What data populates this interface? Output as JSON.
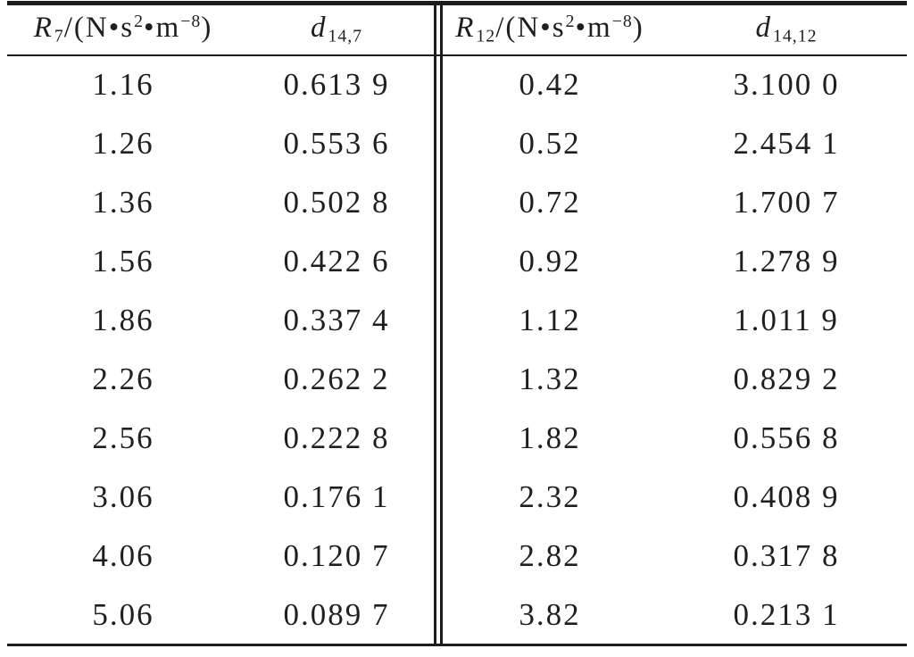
{
  "page": {
    "background": "#ffffff",
    "text_color": "#1f1f1f",
    "rule_color": "#1c1c1c"
  },
  "table": {
    "columns": [
      {
        "name": "R7-with-unit",
        "segments": [
          {
            "t": "it",
            "v": "R"
          },
          {
            "t": "sub",
            "v": "7"
          },
          {
            "t": "n",
            "v": "/(N•s"
          },
          {
            "t": "sup",
            "v": "2"
          },
          {
            "t": "n",
            "v": "•m"
          },
          {
            "t": "sup",
            "v": "−8"
          },
          {
            "t": "n",
            "v": ")"
          }
        ]
      },
      {
        "name": "d14-7",
        "segments": [
          {
            "t": "it",
            "v": "d"
          },
          {
            "t": "sub",
            "v": "14,7"
          }
        ]
      },
      {
        "name": "R12-with-unit",
        "segments": [
          {
            "t": "it",
            "v": "R"
          },
          {
            "t": "sub",
            "v": "12"
          },
          {
            "t": "n",
            "v": "/(N•s"
          },
          {
            "t": "sup",
            "v": "2"
          },
          {
            "t": "n",
            "v": "•m"
          },
          {
            "t": "sup",
            "v": "−8"
          },
          {
            "t": "n",
            "v": ")"
          }
        ]
      },
      {
        "name": "d14-12",
        "segments": [
          {
            "t": "it",
            "v": "d"
          },
          {
            "t": "sub",
            "v": "14,12"
          }
        ]
      }
    ],
    "rows": [
      [
        "1.16",
        "0.613 9",
        "0.42",
        "3.100 0"
      ],
      [
        "1.26",
        "0.553 6",
        "0.52",
        "2.454 1"
      ],
      [
        "1.36",
        "0.502 8",
        "0.72",
        "1.700 7"
      ],
      [
        "1.56",
        "0.422 6",
        "0.92",
        "1.278 9"
      ],
      [
        "1.86",
        "0.337 4",
        "1.12",
        "1.011 9"
      ],
      [
        "2.26",
        "0.262 2",
        "1.32",
        "0.829 2"
      ],
      [
        "2.56",
        "0.222 8",
        "1.82",
        "0.556 8"
      ],
      [
        "3.06",
        "0.176 1",
        "2.32",
        "0.408 9"
      ],
      [
        "4.06",
        "0.120 7",
        "2.82",
        "0.317 8"
      ],
      [
        "5.06",
        "0.089 7",
        "3.82",
        "0.213 1"
      ]
    ]
  },
  "chart_data": {
    "type": "table",
    "columns": [
      "R_7/(N·s^2·m^-8)",
      "d_14,7",
      "R_12/(N·s^2·m^-8)",
      "d_14,12"
    ],
    "R7": [
      1.16,
      1.26,
      1.36,
      1.56,
      1.86,
      2.26,
      2.56,
      3.06,
      4.06,
      5.06
    ],
    "d14_7": [
      0.6139,
      0.5536,
      0.5028,
      0.4226,
      0.3374,
      0.2622,
      0.2228,
      0.1761,
      0.1207,
      0.0897
    ],
    "R12": [
      0.42,
      0.52,
      0.72,
      0.92,
      1.12,
      1.32,
      1.82,
      2.32,
      2.82,
      3.82
    ],
    "d14_12": [
      3.1,
      2.4541,
      1.7007,
      1.2789,
      1.0119,
      0.8292,
      0.5568,
      0.4089,
      0.3178,
      0.2131
    ]
  }
}
